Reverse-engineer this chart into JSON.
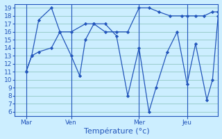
{
  "background_color": "#cceeff",
  "grid_color": "#99cccc",
  "line_color": "#2255bb",
  "marker_color": "#2255bb",
  "xlabel": "Température (°c)",
  "xlabel_fontsize": 8,
  "tick_fontsize": 6.5,
  "ylim": [
    5.5,
    19.5
  ],
  "yticks": [
    6,
    7,
    8,
    9,
    10,
    11,
    12,
    13,
    14,
    15,
    16,
    17,
    18,
    19
  ],
  "day_labels": [
    "Mar",
    "Ven",
    "Mer",
    "Jeu"
  ],
  "day_positions": [
    8,
    40,
    88,
    122
  ],
  "total_points": 144,
  "line1_x": [
    8,
    12,
    17,
    26,
    32,
    40,
    50,
    56,
    64,
    72,
    80,
    88,
    95,
    102,
    110,
    118,
    122,
    128,
    134,
    140,
    144
  ],
  "line1_y": [
    11,
    13,
    13.5,
    14,
    16,
    16,
    17,
    17,
    16,
    16,
    16,
    19,
    19,
    18.5,
    18,
    18,
    18,
    18,
    18,
    18.5,
    18.5
  ],
  "line2_x": [
    8,
    12,
    17,
    26,
    32,
    40,
    46,
    50,
    56,
    64,
    72,
    80,
    88,
    95,
    100,
    108,
    115,
    122,
    128,
    136,
    140,
    144
  ],
  "line2_y": [
    11,
    13,
    17.5,
    19,
    16,
    13,
    10.5,
    15,
    17,
    17,
    15.5,
    8,
    14,
    6,
    9,
    13.5,
    16,
    9.5,
    14.5,
    7.5,
    10,
    18
  ]
}
